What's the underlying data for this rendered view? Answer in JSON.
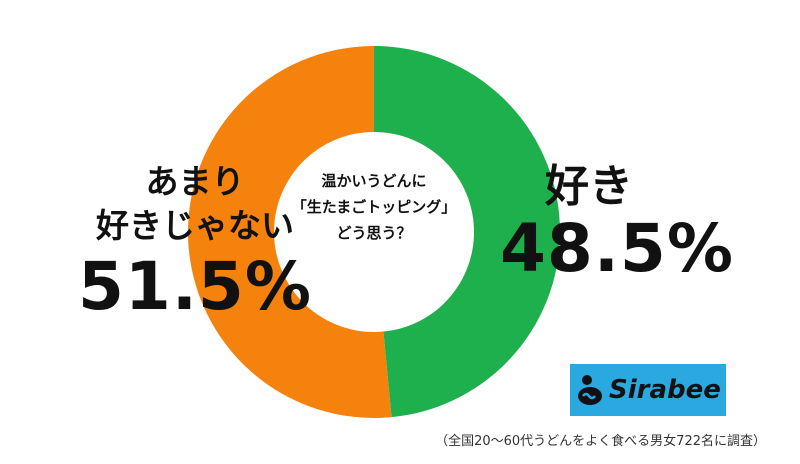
{
  "chart_data": {
    "type": "pie",
    "question": [
      "温かいうどんに",
      "「生たまごトッピング」",
      "どう思う？"
    ],
    "slices": [
      {
        "label": "好き",
        "value": 48.5,
        "value_label": "48.5%",
        "color": "#1fb04e"
      },
      {
        "label_lines": [
          "あまり",
          "好きじゃない"
        ],
        "value": 51.5,
        "value_label": "51.5%",
        "color": "#f5820c"
      }
    ]
  },
  "logo": {
    "text": "Sirabee",
    "bg_color": "#29a9e0"
  },
  "footnote": "（全国20〜60代うどんをよく食べる男女722名に調査）"
}
